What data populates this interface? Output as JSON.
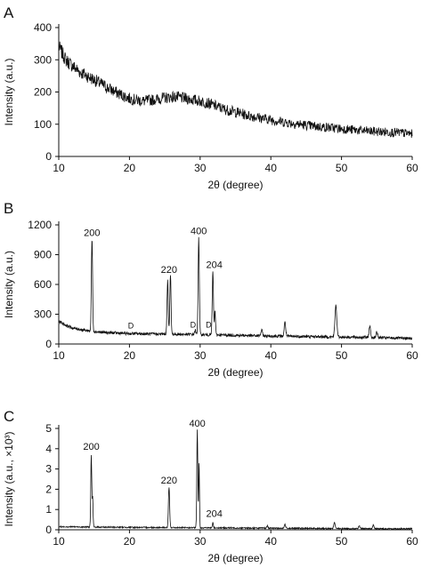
{
  "chart_data": [
    {
      "panel_label": "A",
      "type": "line",
      "xlabel": "2θ (degree)",
      "ylabel": "Intensity (a.u.)",
      "xlim": [
        10,
        60
      ],
      "ylim": [
        0,
        400
      ],
      "xticks": [
        10,
        20,
        30,
        40,
        50,
        60
      ],
      "yticks": [
        0,
        100,
        200,
        300,
        400
      ],
      "grid": false,
      "series": [
        {
          "x": [
            10,
            11,
            12,
            13,
            14,
            15,
            16,
            17,
            18,
            19,
            20,
            21,
            22,
            23,
            24,
            25,
            26,
            27,
            28,
            29,
            30,
            31,
            32,
            33,
            34,
            35,
            36,
            37,
            38,
            39,
            40,
            41,
            42,
            43,
            44,
            45,
            46,
            47,
            48,
            49,
            50,
            51,
            52,
            53,
            54,
            55,
            56,
            57,
            58,
            59,
            60
          ],
          "y": [
            340,
            300,
            280,
            262,
            250,
            238,
            225,
            212,
            200,
            190,
            180,
            175,
            172,
            175,
            178,
            182,
            185,
            183,
            180,
            176,
            172,
            166,
            158,
            150,
            143,
            138,
            132,
            126,
            122,
            118,
            114,
            110,
            106,
            103,
            100,
            97,
            94,
            92,
            90,
            88,
            86,
            84,
            82,
            80,
            78,
            77,
            76,
            75,
            74,
            72,
            70
          ]
        }
      ]
    },
    {
      "panel_label": "B",
      "type": "line",
      "xlabel": "2θ (degree)",
      "ylabel": "Intensity (a.u.)",
      "xlim": [
        10,
        60
      ],
      "ylim": [
        0,
        1200
      ],
      "xticks": [
        10,
        20,
        30,
        40,
        50,
        60
      ],
      "yticks": [
        0,
        300,
        600,
        900,
        1200
      ],
      "grid": false,
      "baseline": [
        [
          10,
          230
        ],
        [
          11,
          190
        ],
        [
          12,
          160
        ],
        [
          14,
          135
        ],
        [
          16,
          118
        ],
        [
          20,
          105
        ],
        [
          25,
          100
        ],
        [
          30,
          95
        ],
        [
          35,
          88
        ],
        [
          40,
          80
        ],
        [
          45,
          75
        ],
        [
          50,
          70
        ],
        [
          55,
          65
        ],
        [
          60,
          55
        ]
      ],
      "peaks": [
        {
          "x": 14.7,
          "y": 1060,
          "w": 0.12
        },
        {
          "x": 25.4,
          "y": 640,
          "w": 0.12
        },
        {
          "x": 25.8,
          "y": 690,
          "w": 0.12
        },
        {
          "x": 29.3,
          "y": 140,
          "w": 0.12
        },
        {
          "x": 29.8,
          "y": 1080,
          "w": 0.12
        },
        {
          "x": 31.8,
          "y": 740,
          "w": 0.12
        },
        {
          "x": 32.1,
          "y": 340,
          "w": 0.1
        },
        {
          "x": 38.7,
          "y": 140,
          "w": 0.15
        },
        {
          "x": 42.0,
          "y": 220,
          "w": 0.15
        },
        {
          "x": 49.2,
          "y": 390,
          "w": 0.18
        },
        {
          "x": 54.0,
          "y": 180,
          "w": 0.15
        },
        {
          "x": 55.0,
          "y": 120,
          "w": 0.15
        }
      ],
      "annotations": [
        {
          "text": "200",
          "x": 14.7,
          "y": 1070
        },
        {
          "text": "220",
          "x": 25.6,
          "y": 700
        },
        {
          "text": "400",
          "x": 29.8,
          "y": 1090
        },
        {
          "text": "204",
          "x": 32.0,
          "y": 750
        },
        {
          "text": "D",
          "x": 20.2,
          "y": 140
        },
        {
          "text": "D",
          "x": 29.0,
          "y": 150
        },
        {
          "text": "D",
          "x": 31.2,
          "y": 150
        }
      ]
    },
    {
      "panel_label": "C",
      "type": "line",
      "xlabel": "2θ (degree)",
      "ylabel": "Intensity (a.u., ×10³)",
      "xlim": [
        10,
        60
      ],
      "ylim": [
        0,
        5
      ],
      "xticks": [
        10,
        20,
        30,
        40,
        50,
        60
      ],
      "yticks": [
        0,
        1,
        2,
        3,
        4,
        5
      ],
      "grid": false,
      "baseline": [
        [
          10,
          0.15
        ],
        [
          20,
          0.12
        ],
        [
          30,
          0.1
        ],
        [
          40,
          0.08
        ],
        [
          50,
          0.06
        ],
        [
          60,
          0.05
        ]
      ],
      "peaks": [
        {
          "x": 14.6,
          "y": 3.7,
          "w": 0.1
        },
        {
          "x": 14.8,
          "y": 1.6,
          "w": 0.08
        },
        {
          "x": 25.6,
          "y": 2.1,
          "w": 0.12
        },
        {
          "x": 29.6,
          "y": 4.95,
          "w": 0.1
        },
        {
          "x": 29.85,
          "y": 3.3,
          "w": 0.08
        },
        {
          "x": 31.8,
          "y": 0.35,
          "w": 0.1
        },
        {
          "x": 39.5,
          "y": 0.2,
          "w": 0.12
        },
        {
          "x": 42.0,
          "y": 0.28,
          "w": 0.12
        },
        {
          "x": 49.0,
          "y": 0.35,
          "w": 0.15
        },
        {
          "x": 52.5,
          "y": 0.2,
          "w": 0.12
        },
        {
          "x": 54.5,
          "y": 0.25,
          "w": 0.12
        }
      ],
      "annotations": [
        {
          "text": "200",
          "x": 14.6,
          "y": 3.85
        },
        {
          "text": "220",
          "x": 25.6,
          "y": 2.2
        },
        {
          "text": "400",
          "x": 29.6,
          "y": 5.0
        },
        {
          "text": "204",
          "x": 32.0,
          "y": 0.55
        }
      ]
    }
  ]
}
